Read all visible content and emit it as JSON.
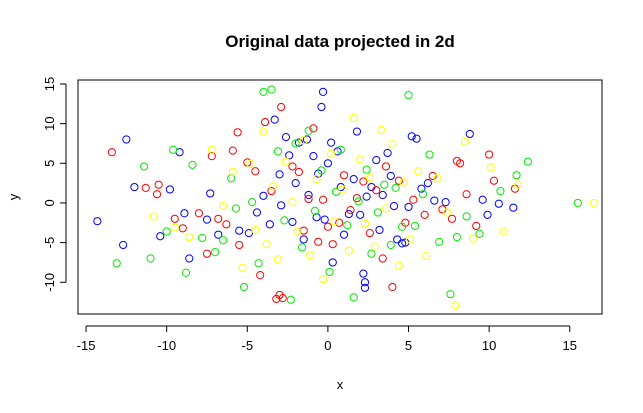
{
  "chart_data": {
    "type": "scatter",
    "title": "Original data projected in 2d",
    "xlabel": "x",
    "ylabel": "y",
    "xlim": [
      -15.5,
      17
    ],
    "ylim": [
      -14,
      15.5
    ],
    "x_ticks": [
      -15,
      -10,
      -5,
      0,
      5,
      10,
      15
    ],
    "y_ticks": [
      -10,
      -5,
      0,
      5,
      10,
      15
    ],
    "grid": false,
    "legend": "none",
    "marker": "open-circle",
    "series": [
      {
        "color": "#0000ff",
        "points": [
          [
            -14.3,
            -2.3
          ],
          [
            -12.7,
            -5.3
          ],
          [
            -12.5,
            8.0
          ],
          [
            -12.0,
            2.0
          ],
          [
            -10.4,
            -4.2
          ],
          [
            -9.8,
            1.7
          ],
          [
            -9.2,
            6.4
          ],
          [
            -8.9,
            -1.3
          ],
          [
            -8.6,
            -7.0
          ],
          [
            -7.5,
            -2.1
          ],
          [
            -7.3,
            1.2
          ],
          [
            -6.8,
            -4.0
          ],
          [
            -5.5,
            -3.5
          ],
          [
            -4.9,
            -3.8
          ],
          [
            -4.4,
            -1.2
          ],
          [
            -4.0,
            0.9
          ],
          [
            -3.6,
            -2.7
          ],
          [
            -3.3,
            10.5
          ],
          [
            -3.0,
            3.6
          ],
          [
            -2.9,
            -0.3
          ],
          [
            -2.6,
            8.3
          ],
          [
            -2.4,
            6.0
          ],
          [
            -2.2,
            -2.4
          ],
          [
            -2.0,
            2.5
          ],
          [
            -1.8,
            7.6
          ],
          [
            -1.5,
            -4.6
          ],
          [
            -1.3,
            8.0
          ],
          [
            -1.2,
            1.0
          ],
          [
            -0.9,
            5.9
          ],
          [
            -0.7,
            -1.8
          ],
          [
            -0.6,
            3.7
          ],
          [
            -0.4,
            12.1
          ],
          [
            -0.3,
            14.0
          ],
          [
            -0.2,
            -2.1
          ],
          [
            0.0,
            5.0
          ],
          [
            0.2,
            7.6
          ],
          [
            0.3,
            -7.5
          ],
          [
            0.6,
            6.5
          ],
          [
            0.8,
            2.0
          ],
          [
            1.0,
            -4.0
          ],
          [
            1.3,
            -1.4
          ],
          [
            1.6,
            3.0
          ],
          [
            1.8,
            9.0
          ],
          [
            2.0,
            -1.5
          ],
          [
            2.2,
            -8.9
          ],
          [
            2.3,
            -10.0
          ],
          [
            2.3,
            -10.7
          ],
          [
            2.4,
            0.8
          ],
          [
            2.7,
            2.0
          ],
          [
            3.0,
            5.4
          ],
          [
            3.2,
            -3.4
          ],
          [
            3.4,
            1.0
          ],
          [
            3.7,
            6.3
          ],
          [
            3.9,
            3.4
          ],
          [
            4.1,
            -0.4
          ],
          [
            4.3,
            -4.6
          ],
          [
            4.6,
            -5.1
          ],
          [
            4.8,
            -5.0
          ],
          [
            5.0,
            -0.5
          ],
          [
            5.2,
            8.4
          ],
          [
            5.5,
            8.1
          ],
          [
            5.8,
            1.8
          ],
          [
            6.2,
            2.5
          ],
          [
            6.6,
            0.3
          ],
          [
            7.3,
            0.1
          ],
          [
            8.8,
            8.7
          ],
          [
            9.6,
            0.4
          ],
          [
            9.9,
            -1.5
          ],
          [
            10.6,
            -0.1
          ],
          [
            11.5,
            -0.6
          ]
        ]
      },
      {
        "color": "#ff0000",
        "points": [
          [
            -13.4,
            6.4
          ],
          [
            -11.3,
            1.9
          ],
          [
            -10.6,
            1.1
          ],
          [
            -10.5,
            2.3
          ],
          [
            -9.5,
            -2.0
          ],
          [
            -9.0,
            -3.2
          ],
          [
            -8.0,
            -1.3
          ],
          [
            -7.5,
            -6.4
          ],
          [
            -7.2,
            5.9
          ],
          [
            -6.8,
            -2.0
          ],
          [
            -6.3,
            -2.7
          ],
          [
            -5.9,
            6.6
          ],
          [
            -5.6,
            8.9
          ],
          [
            -5.5,
            -5.3
          ],
          [
            -5.0,
            5.1
          ],
          [
            -4.5,
            4.0
          ],
          [
            -4.2,
            -9.1
          ],
          [
            -3.9,
            10.2
          ],
          [
            -3.5,
            1.5
          ],
          [
            -3.2,
            -12.1
          ],
          [
            -3.0,
            -11.6
          ],
          [
            -2.8,
            -12.0
          ],
          [
            -2.9,
            12.1
          ],
          [
            -2.2,
            4.6
          ],
          [
            -1.8,
            3.9
          ],
          [
            -1.5,
            -3.5
          ],
          [
            -1.2,
            0.5
          ],
          [
            -0.9,
            9.4
          ],
          [
            -0.6,
            -4.9
          ],
          [
            -0.3,
            0.4
          ],
          [
            0.0,
            -3.0
          ],
          [
            0.3,
            -5.2
          ],
          [
            0.7,
            -2.5
          ],
          [
            1.0,
            3.5
          ],
          [
            1.4,
            -0.9
          ],
          [
            1.8,
            0.6
          ],
          [
            2.2,
            2.7
          ],
          [
            2.6,
            -3.8
          ],
          [
            3.0,
            1.6
          ],
          [
            3.4,
            -7.0
          ],
          [
            3.6,
            4.6
          ],
          [
            4.0,
            -10.6
          ],
          [
            4.4,
            2.8
          ],
          [
            4.8,
            -2.5
          ],
          [
            5.3,
            0.4
          ],
          [
            6.0,
            -1.5
          ],
          [
            6.5,
            3.4
          ],
          [
            7.1,
            -0.8
          ],
          [
            7.7,
            -2.0
          ],
          [
            8.0,
            5.3
          ],
          [
            8.2,
            5.0
          ],
          [
            8.6,
            1.1
          ],
          [
            9.2,
            -2.9
          ],
          [
            10.0,
            6.1
          ],
          [
            10.3,
            2.8
          ],
          [
            11.6,
            1.8
          ]
        ]
      },
      {
        "color": "#00ee00",
        "points": [
          [
            -13.1,
            -7.6
          ],
          [
            -11.4,
            4.6
          ],
          [
            -11.0,
            -7.0
          ],
          [
            -10.0,
            -3.6
          ],
          [
            -9.6,
            6.7
          ],
          [
            -8.8,
            -8.8
          ],
          [
            -8.4,
            4.8
          ],
          [
            -7.8,
            -4.4
          ],
          [
            -7.0,
            -6.2
          ],
          [
            -6.5,
            -4.7
          ],
          [
            -6.0,
            3.1
          ],
          [
            -5.7,
            -0.7
          ],
          [
            -5.2,
            -10.6
          ],
          [
            -4.7,
            0.1
          ],
          [
            -4.3,
            -7.6
          ],
          [
            -4.0,
            14.0
          ],
          [
            -3.5,
            14.3
          ],
          [
            -3.1,
            6.5
          ],
          [
            -2.7,
            -2.2
          ],
          [
            -2.3,
            -12.2
          ],
          [
            -2.0,
            7.5
          ],
          [
            -1.6,
            -5.6
          ],
          [
            -1.2,
            9.1
          ],
          [
            -0.8,
            -1.0
          ],
          [
            -0.4,
            4.1
          ],
          [
            0.1,
            -8.7
          ],
          [
            0.5,
            1.4
          ],
          [
            0.8,
            6.7
          ],
          [
            1.2,
            -2.8
          ],
          [
            1.6,
            -11.9
          ],
          [
            1.9,
            0.2
          ],
          [
            2.4,
            4.2
          ],
          [
            2.7,
            -6.4
          ],
          [
            3.1,
            -1.2
          ],
          [
            3.5,
            2.3
          ],
          [
            3.9,
            -5.3
          ],
          [
            4.2,
            1.9
          ],
          [
            4.6,
            -3.0
          ],
          [
            5.0,
            13.6
          ],
          [
            5.4,
            -2.9
          ],
          [
            5.9,
            1.1
          ],
          [
            6.3,
            6.1
          ],
          [
            6.9,
            -4.9
          ],
          [
            7.6,
            -11.5
          ],
          [
            8.0,
            -4.3
          ],
          [
            8.6,
            -1.7
          ],
          [
            9.4,
            -3.9
          ],
          [
            10.7,
            1.5
          ],
          [
            11.7,
            3.5
          ],
          [
            12.4,
            5.2
          ],
          [
            15.5,
            0.0
          ]
        ]
      },
      {
        "color": "#ffff00",
        "points": [
          [
            -10.8,
            -1.7
          ],
          [
            -9.5,
            -3.1
          ],
          [
            -8.6,
            -4.3
          ],
          [
            -7.2,
            6.7
          ],
          [
            -6.5,
            -0.4
          ],
          [
            -5.9,
            3.9
          ],
          [
            -5.3,
            -8.2
          ],
          [
            -4.8,
            4.9
          ],
          [
            -4.5,
            -3.4
          ],
          [
            -4.0,
            9.0
          ],
          [
            -3.8,
            -5.2
          ],
          [
            -3.4,
            2.1
          ],
          [
            -3.1,
            -7.1
          ],
          [
            -2.6,
            5.2
          ],
          [
            -2.2,
            0.1
          ],
          [
            -1.9,
            -3.6
          ],
          [
            -1.5,
            7.9
          ],
          [
            -1.1,
            -6.6
          ],
          [
            -0.7,
            3.0
          ],
          [
            -0.3,
            -9.6
          ],
          [
            0.2,
            6.2
          ],
          [
            0.4,
            -2.3
          ],
          [
            0.9,
            1.7
          ],
          [
            1.3,
            -6.0
          ],
          [
            1.6,
            10.7
          ],
          [
            2.0,
            5.5
          ],
          [
            2.3,
            -2.6
          ],
          [
            2.6,
            3.2
          ],
          [
            2.9,
            -5.5
          ],
          [
            3.3,
            9.2
          ],
          [
            3.6,
            -0.7
          ],
          [
            4.0,
            7.4
          ],
          [
            4.4,
            -7.9
          ],
          [
            4.7,
            2.6
          ],
          [
            5.1,
            -4.6
          ],
          [
            5.6,
            4.0
          ],
          [
            6.1,
            -6.7
          ],
          [
            6.8,
            3.1
          ],
          [
            7.4,
            -1.2
          ],
          [
            7.9,
            -12.9
          ],
          [
            8.5,
            7.7
          ],
          [
            9.0,
            -4.5
          ],
          [
            10.1,
            4.5
          ],
          [
            10.9,
            -3.6
          ],
          [
            11.8,
            2.3
          ],
          [
            16.5,
            0.0
          ]
        ]
      }
    ]
  }
}
